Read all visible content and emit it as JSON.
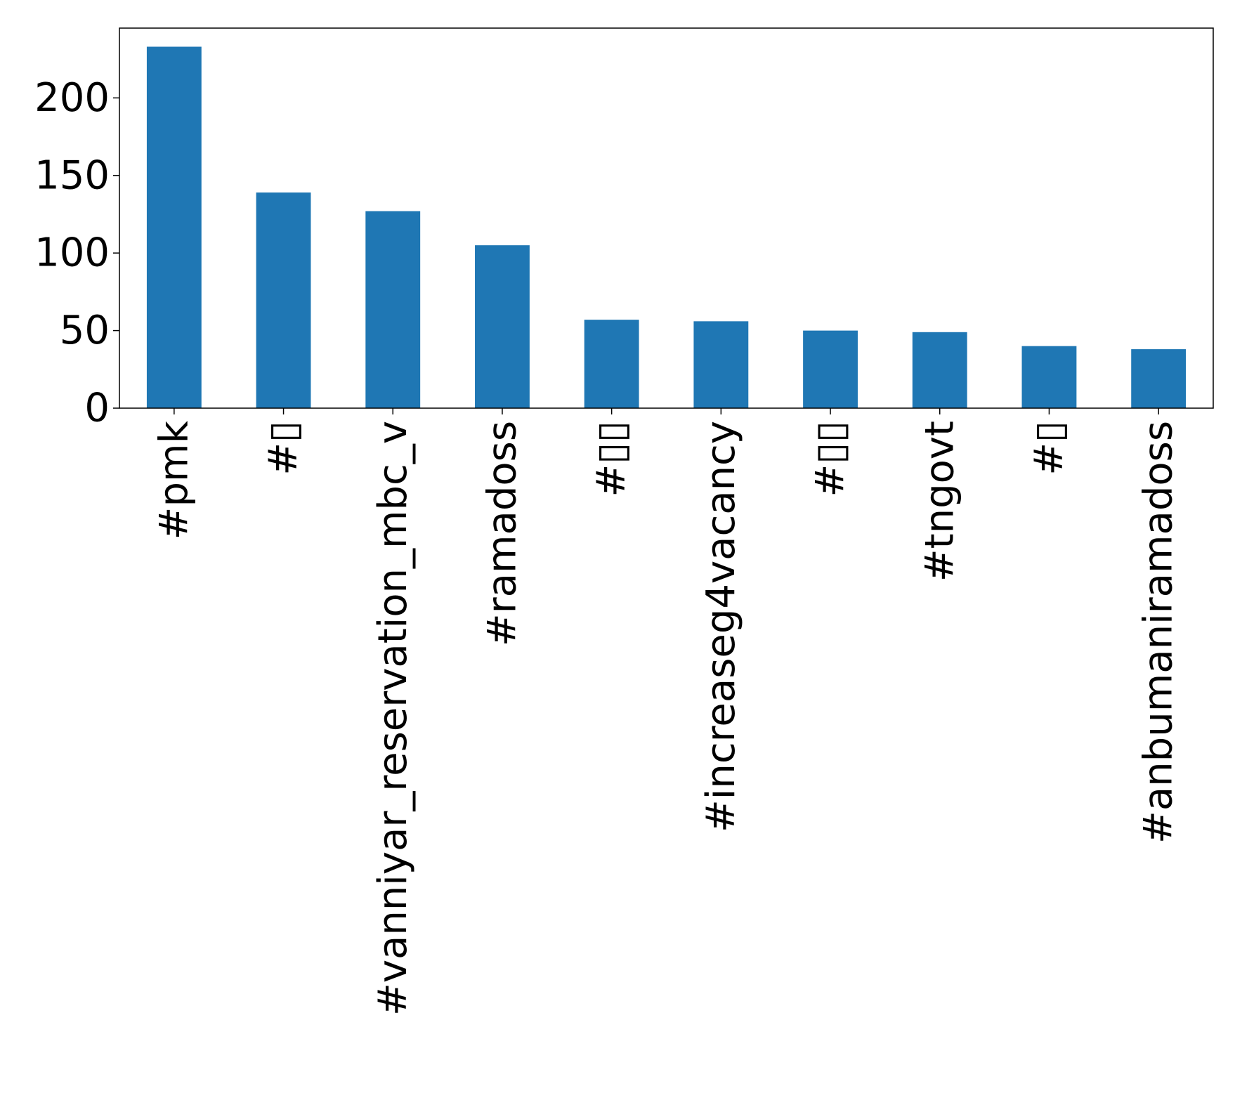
{
  "chart_data": {
    "type": "bar",
    "categories": [
      "#pmk",
      "#▯",
      "#vanniyar_reservation_mbc_v",
      "#ramadoss",
      "#▯▯",
      "#increaseg4vacancy",
      "#▯▯",
      "#tngovt",
      "#▯",
      "#anbumaniramadoss"
    ],
    "values": [
      233,
      139,
      127,
      105,
      57,
      56,
      50,
      49,
      40,
      38
    ],
    "ylim": [
      0,
      245
    ],
    "yticks": [
      0,
      50,
      100,
      150,
      200
    ],
    "title": "",
    "xlabel": "",
    "ylabel": "",
    "grid": false,
    "legend": "none",
    "bar_color": "#1f77b4"
  }
}
